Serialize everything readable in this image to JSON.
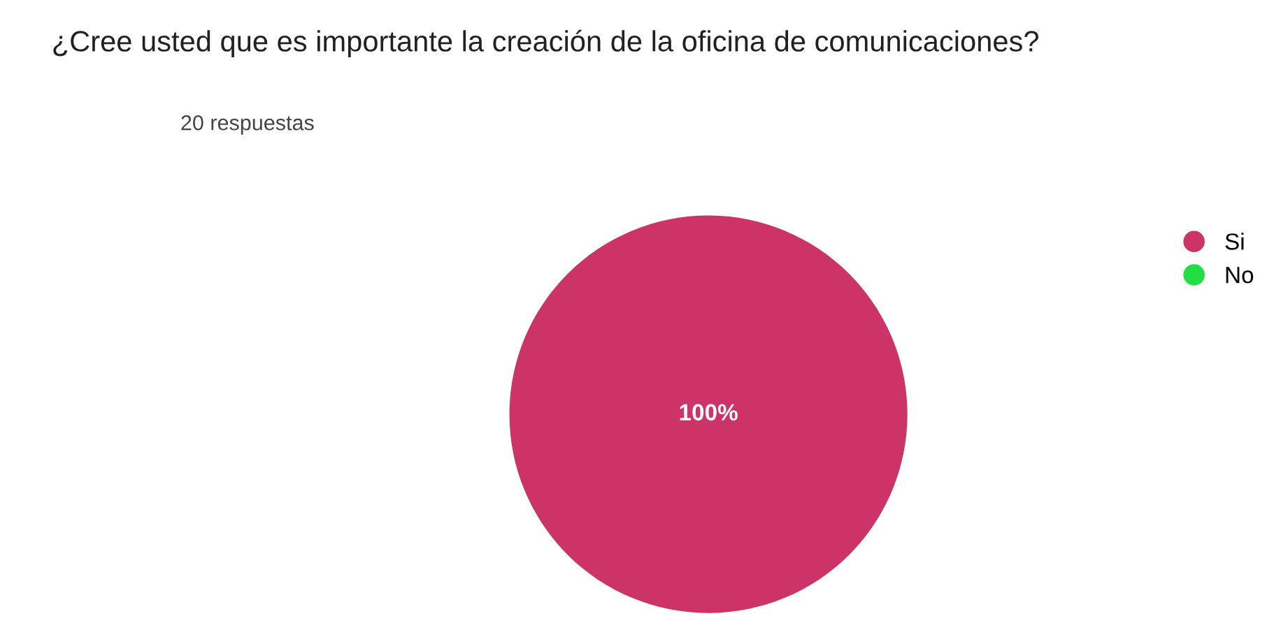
{
  "chart_data": {
    "type": "pie",
    "title": "¿Cree usted que es importante la creación de la oficina de comunicaciones?",
    "subtitle": "20 respuestas",
    "categories": [
      "Si",
      "No"
    ],
    "values": [
      100,
      0
    ],
    "colors": [
      "#cc3366",
      "#22dd44"
    ],
    "value_labels": [
      "100%",
      null
    ],
    "legend": "top right"
  }
}
